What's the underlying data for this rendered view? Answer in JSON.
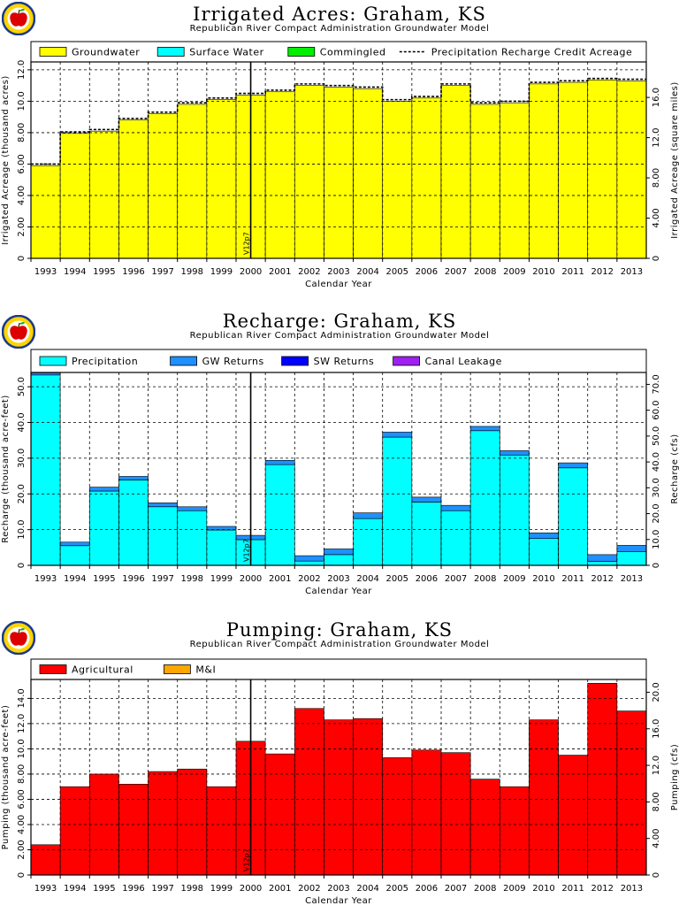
{
  "colors": {
    "groundwater": "#ffff00",
    "surface_water": "#00ffff",
    "commingled": "#00ee00",
    "precipitation": "#00ffff",
    "gw_returns": "#1e90ff",
    "sw_returns": "#0000ff",
    "canal_leakage": "#a020f0",
    "agricultural": "#ff0000",
    "mi": "#ffa500"
  },
  "logo_icon": "apple-logo-icon",
  "chart_data": [
    {
      "type": "area",
      "title": "Irrigated Acres: Graham, KS",
      "subtitle": "Republican River Compact Administration Groundwater Model",
      "xlabel": "Calendar Year",
      "ylabel": "Irrigated Acreage (thousand acres)",
      "ylabel_right": "Irrigated Acreage (square miles)",
      "categories": [
        "1993",
        "1994",
        "1995",
        "1996",
        "1997",
        "1998",
        "1999",
        "2000",
        "2001",
        "2002",
        "2003",
        "2004",
        "2005",
        "2006",
        "2007",
        "2008",
        "2009",
        "2010",
        "2011",
        "2012",
        "2013"
      ],
      "ylim": [
        0,
        12.5
      ],
      "yticks": [
        "0",
        "2.00",
        "4.00",
        "6.00",
        "8.00",
        "10.0",
        "12.0"
      ],
      "ylim_right": [
        0,
        19.53
      ],
      "yticks_right": [
        "0",
        "4.00",
        "8.00",
        "12.0",
        "16.0"
      ],
      "legend_placement": "top",
      "series": [
        {
          "name": "Groundwater",
          "color_key": "groundwater",
          "values": [
            5.9,
            7.95,
            8.1,
            8.8,
            9.2,
            9.8,
            10.1,
            10.4,
            10.6,
            11.0,
            10.9,
            10.8,
            10.0,
            10.2,
            11.0,
            9.8,
            9.9,
            11.1,
            11.2,
            11.35,
            11.3
          ]
        },
        {
          "name": "Surface Water",
          "color_key": "surface_water",
          "values": [
            0,
            0,
            0,
            0,
            0,
            0,
            0,
            0,
            0,
            0,
            0,
            0,
            0,
            0,
            0,
            0,
            0,
            0,
            0,
            0,
            0
          ]
        },
        {
          "name": "Commingled",
          "color_key": "commingled",
          "values": [
            0,
            0,
            0,
            0,
            0,
            0,
            0,
            0,
            0,
            0,
            0,
            0,
            0,
            0,
            0,
            0,
            0,
            0,
            0,
            0,
            0
          ]
        }
      ],
      "dashed_series": {
        "name": "Precipitation Recharge Credit Acreage",
        "values": [
          6.0,
          8.05,
          8.2,
          8.9,
          9.3,
          9.9,
          10.2,
          10.5,
          10.7,
          11.1,
          11.0,
          10.9,
          10.1,
          10.3,
          11.1,
          9.9,
          10.0,
          11.2,
          11.3,
          11.45,
          11.4
        ]
      },
      "marker": {
        "label": "V12p7",
        "x": 2000.5
      }
    },
    {
      "type": "area",
      "title": "Recharge: Graham, KS",
      "subtitle": "Republican River Compact Administration Groundwater Model",
      "xlabel": "Calendar Year",
      "ylabel": "Recharge (thousand acre-feet)",
      "ylabel_right": "Recharge (cfs)",
      "categories": [
        "1993",
        "1994",
        "1995",
        "1996",
        "1997",
        "1998",
        "1999",
        "2000",
        "2001",
        "2002",
        "2003",
        "2004",
        "2005",
        "2006",
        "2007",
        "2008",
        "2009",
        "2010",
        "2011",
        "2012",
        "2013"
      ],
      "ylim": [
        0,
        54
      ],
      "yticks": [
        "0",
        "10.0",
        "20.0",
        "30.0",
        "40.0",
        "50.0"
      ],
      "ylim_right": [
        0,
        74.6
      ],
      "yticks_right": [
        "0",
        "10.0",
        "20.0",
        "30.0",
        "40.0",
        "50.0",
        "60.0",
        "70.0"
      ],
      "legend_placement": "top",
      "series": [
        {
          "name": "Precipitation",
          "color_key": "precipitation",
          "values": [
            53.3,
            5.5,
            20.8,
            23.9,
            16.4,
            15.3,
            9.9,
            7.2,
            28.2,
            1.2,
            3.0,
            13.1,
            35.9,
            17.7,
            15.3,
            37.7,
            30.9,
            7.5,
            27.3,
            1.1,
            3.8
          ]
        },
        {
          "name": "GW Returns",
          "color_key": "gw_returns",
          "values": [
            0.6,
            1.0,
            1.1,
            1.0,
            1.1,
            1.1,
            1.0,
            1.2,
            1.2,
            1.5,
            1.6,
            1.6,
            1.4,
            1.4,
            1.5,
            1.2,
            1.2,
            1.6,
            1.4,
            1.9,
            1.8
          ]
        },
        {
          "name": "SW Returns",
          "color_key": "sw_returns",
          "values": [
            0,
            0,
            0,
            0,
            0,
            0,
            0,
            0,
            0,
            0,
            0,
            0,
            0,
            0,
            0,
            0,
            0,
            0,
            0,
            0,
            0
          ]
        },
        {
          "name": "Canal Leakage",
          "color_key": "canal_leakage",
          "values": [
            0,
            0,
            0,
            0,
            0,
            0,
            0,
            0,
            0,
            0,
            0,
            0,
            0,
            0,
            0,
            0,
            0,
            0,
            0,
            0,
            0
          ]
        }
      ],
      "marker": {
        "label": "V12p7",
        "x": 2000.5
      }
    },
    {
      "type": "area",
      "title": "Pumping: Graham, KS",
      "subtitle": "Republican River Compact Administration Groundwater Model",
      "xlabel": "Calendar Year",
      "ylabel": "Pumping (thousand acre-feet)",
      "ylabel_right": "Pumping (cfs)",
      "categories": [
        "1993",
        "1994",
        "1995",
        "1996",
        "1997",
        "1998",
        "1999",
        "2000",
        "2001",
        "2002",
        "2003",
        "2004",
        "2005",
        "2006",
        "2007",
        "2008",
        "2009",
        "2010",
        "2011",
        "2012",
        "2013"
      ],
      "ylim": [
        0,
        15.5
      ],
      "yticks": [
        "0",
        "2.00",
        "4.00",
        "6.00",
        "8.00",
        "10.0",
        "12.0",
        "14.0"
      ],
      "ylim_right": [
        0,
        21.4
      ],
      "yticks_right": [
        "0",
        "4.00",
        "8.00",
        "12.0",
        "16.0",
        "20.0"
      ],
      "legend_placement": "top",
      "series": [
        {
          "name": "Agricultural",
          "color_key": "agricultural",
          "values": [
            2.4,
            7.0,
            8.0,
            7.2,
            8.2,
            8.4,
            7.0,
            10.6,
            9.6,
            13.2,
            12.3,
            12.4,
            9.3,
            9.9,
            9.7,
            7.6,
            7.0,
            12.3,
            9.5,
            15.2,
            13.0
          ]
        },
        {
          "name": "M&I",
          "color_key": "mi",
          "values": [
            0,
            0,
            0,
            0,
            0,
            0,
            0,
            0,
            0,
            0,
            0,
            0,
            0,
            0,
            0,
            0,
            0,
            0,
            0,
            0,
            0
          ]
        }
      ],
      "marker": {
        "label": "V12p7",
        "x": 2000.5
      }
    }
  ]
}
